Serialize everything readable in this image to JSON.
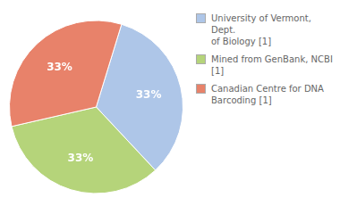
{
  "chart_data": {
    "type": "pie",
    "categories": [
      "University of Vermont, Dept.\nof Biology [1]",
      "Mined from GenBank, NCBI [1]",
      "Canadian Centre for DNA\nBarcoding [1]"
    ],
    "values": [
      33.33,
      33.34,
      33.33
    ],
    "value_labels": [
      "33%",
      "33%",
      "33%"
    ],
    "data_labels": true,
    "colors": [
      "#aec6e8",
      "#b5d47a",
      "#e8826a"
    ],
    "legend": "right"
  }
}
